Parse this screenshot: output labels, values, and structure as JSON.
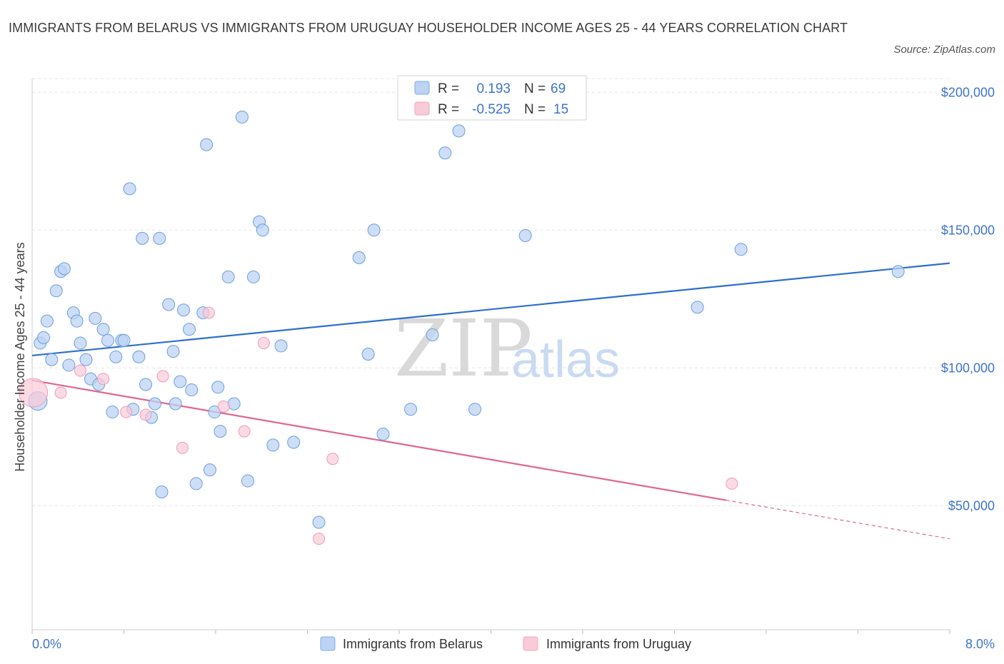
{
  "title": "IMMIGRANTS FROM BELARUS VS IMMIGRANTS FROM URUGUAY HOUSEHOLDER INCOME AGES 25 - 44 YEARS CORRELATION CHART",
  "source": "Source: ZipAtlas.com",
  "watermark": {
    "zip": "ZIP",
    "atlas": "atlas"
  },
  "stats": {
    "belarus": {
      "r_label": "R =",
      "r": "0.193",
      "n_label": "N =",
      "n": "69"
    },
    "uruguay": {
      "r_label": "R =",
      "r": "-0.525",
      "n_label": "N =",
      "n": "15"
    }
  },
  "chart_data": {
    "type": "scatter",
    "title": "IMMIGRANTS FROM BELARUS VS IMMIGRANTS FROM URUGUAY HOUSEHOLDER INCOME AGES 25 - 44 YEARS CORRELATION CHART",
    "ylabel": "Householder Income Ages 25 - 44 years",
    "xlim": [
      0,
      8
    ],
    "ylim": [
      5000,
      205000
    ],
    "x_tick_labels": [
      "0.0%",
      "8.0%"
    ],
    "y_ticks": [
      50000,
      100000,
      150000,
      200000
    ],
    "y_tick_labels": [
      "$50,000",
      "$100,000",
      "$150,000",
      "$200,000"
    ],
    "grid": true,
    "legend_position": "bottom",
    "colors": {
      "belarus": "#7aaee8",
      "belarus_line": "#2f6fcc",
      "uruguay": "#f0a6bf",
      "uruguay_line": "#e0668f"
    },
    "series": [
      {
        "name": "Immigrants from Belarus",
        "points": [
          [
            0.05,
            88000
          ],
          [
            0.07,
            109000
          ],
          [
            0.1,
            111000
          ],
          [
            0.13,
            117000
          ],
          [
            0.17,
            103000
          ],
          [
            0.21,
            128000
          ],
          [
            0.25,
            135000
          ],
          [
            0.28,
            136000
          ],
          [
            0.32,
            101000
          ],
          [
            0.36,
            120000
          ],
          [
            0.39,
            117000
          ],
          [
            0.42,
            109000
          ],
          [
            0.47,
            103000
          ],
          [
            0.51,
            96000
          ],
          [
            0.55,
            118000
          ],
          [
            0.58,
            94000
          ],
          [
            0.62,
            114000
          ],
          [
            0.66,
            110000
          ],
          [
            0.7,
            84000
          ],
          [
            0.73,
            104000
          ],
          [
            0.78,
            110000
          ],
          [
            0.8,
            110000
          ],
          [
            0.85,
            165000
          ],
          [
            0.88,
            85000
          ],
          [
            0.93,
            104000
          ],
          [
            0.96,
            147000
          ],
          [
            0.99,
            94000
          ],
          [
            1.04,
            82000
          ],
          [
            1.07,
            87000
          ],
          [
            1.11,
            147000
          ],
          [
            1.13,
            55000
          ],
          [
            1.19,
            123000
          ],
          [
            1.23,
            106000
          ],
          [
            1.25,
            87000
          ],
          [
            1.29,
            95000
          ],
          [
            1.32,
            121000
          ],
          [
            1.37,
            114000
          ],
          [
            1.39,
            92000
          ],
          [
            1.43,
            58000
          ],
          [
            1.49,
            120000
          ],
          [
            1.52,
            181000
          ],
          [
            1.55,
            63000
          ],
          [
            1.59,
            84000
          ],
          [
            1.62,
            93000
          ],
          [
            1.64,
            77000
          ],
          [
            1.71,
            133000
          ],
          [
            1.76,
            87000
          ],
          [
            1.83,
            191000
          ],
          [
            1.88,
            59000
          ],
          [
            1.93,
            133000
          ],
          [
            1.98,
            153000
          ],
          [
            2.01,
            150000
          ],
          [
            2.1,
            72000
          ],
          [
            2.17,
            108000
          ],
          [
            2.28,
            73000
          ],
          [
            2.5,
            44000
          ],
          [
            2.85,
            140000
          ],
          [
            2.93,
            105000
          ],
          [
            2.98,
            150000
          ],
          [
            3.06,
            76000
          ],
          [
            3.3,
            85000
          ],
          [
            3.49,
            112000
          ],
          [
            3.6,
            178000
          ],
          [
            3.72,
            186000
          ],
          [
            3.86,
            85000
          ],
          [
            4.3,
            148000
          ],
          [
            5.8,
            122000
          ],
          [
            6.18,
            143000
          ],
          [
            7.55,
            135000
          ]
        ],
        "trend": {
          "x": [
            0,
            8
          ],
          "y": [
            104500,
            138000
          ]
        }
      },
      {
        "name": "Immigrants from Uruguay",
        "points": [
          [
            0.01,
            91000
          ],
          [
            0.25,
            91000
          ],
          [
            0.42,
            99000
          ],
          [
            0.62,
            96000
          ],
          [
            0.82,
            84000
          ],
          [
            0.99,
            83000
          ],
          [
            1.14,
            97000
          ],
          [
            1.31,
            71000
          ],
          [
            1.54,
            120000
          ],
          [
            1.67,
            86000
          ],
          [
            1.85,
            77000
          ],
          [
            2.02,
            109000
          ],
          [
            2.5,
            38000
          ],
          [
            2.62,
            67000
          ],
          [
            6.1,
            58000
          ]
        ],
        "trend": {
          "x": [
            0,
            6.05
          ],
          "y": [
            95500,
            52000
          ]
        },
        "trend_dashed": {
          "x": [
            6.05,
            8
          ],
          "y": [
            52000,
            38000
          ]
        }
      }
    ]
  },
  "legend": {
    "belarus": "Immigrants from Belarus",
    "uruguay": "Immigrants from Uruguay"
  }
}
